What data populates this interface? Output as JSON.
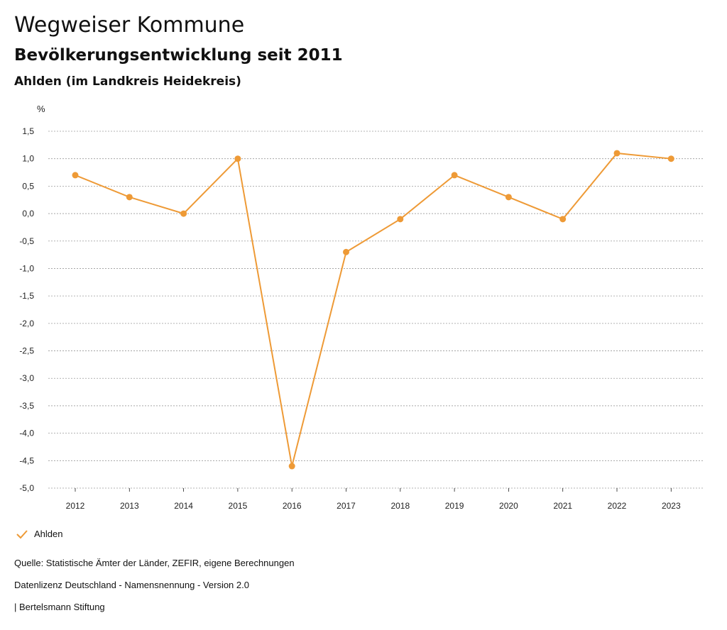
{
  "header": {
    "title": "Wegweiser Kommune",
    "subtitle": "Bevölkerungsentwicklung seit 2011",
    "region": "Ahlden (im Landkreis Heidekreis)"
  },
  "legend": {
    "label": "Ahlden"
  },
  "footer": {
    "source": "Quelle: Statistische Ämter der Länder, ZEFIR, eigene Berechnungen",
    "license": "Datenlizenz Deutschland - Namensnennung - Version 2.0",
    "credit": "| Bertelsmann Stiftung"
  },
  "colors": {
    "series": "#ee9a36",
    "grid": "#9a9a9a",
    "axis": "#222222"
  },
  "chart_data": {
    "type": "line",
    "title": "Bevölkerungsentwicklung seit 2011",
    "ylabel": "%",
    "xlabel": "",
    "categories": [
      "2012",
      "2013",
      "2014",
      "2015",
      "2016",
      "2017",
      "2018",
      "2019",
      "2020",
      "2021",
      "2022",
      "2023"
    ],
    "series": [
      {
        "name": "Ahlden",
        "values": [
          0.7,
          0.3,
          0.0,
          1.0,
          -4.6,
          -0.7,
          -0.1,
          0.7,
          0.3,
          -0.1,
          1.1,
          1.0
        ]
      }
    ],
    "ylim": [
      -5.0,
      1.5
    ],
    "yticks": [
      "1,5",
      "1,0",
      "0,5",
      "0,0",
      "-0,5",
      "-1,0",
      "-1,5",
      "-2,0",
      "-2,5",
      "-3,0",
      "-3,5",
      "-4,0",
      "-4,5",
      "-5,0"
    ],
    "ytick_values": [
      1.5,
      1.0,
      0.5,
      0.0,
      -0.5,
      -1.0,
      -1.5,
      -2.0,
      -2.5,
      -3.0,
      -3.5,
      -4.0,
      -4.5,
      -5.0
    ],
    "grid": true,
    "legend_position": "bottom-left"
  }
}
